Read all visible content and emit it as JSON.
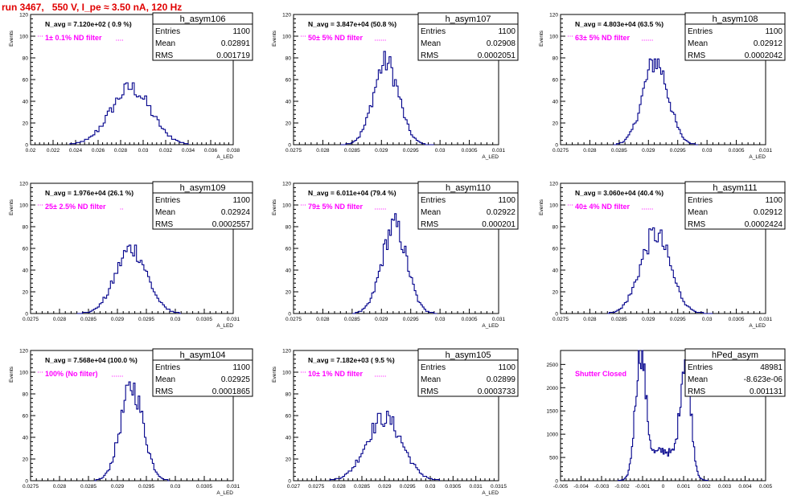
{
  "header": {
    "run_title": "run 3467,   550 V, I_pe ≈ 3.50 nA, 120 Hz"
  },
  "colors": {
    "title": "#e00000",
    "histogram": "#00008b",
    "annotation": "#ff00ff"
  },
  "chart_data": [
    {
      "type": "histogram",
      "name": "h_asym106",
      "navg_text": "N_avg = 7.120e+02 ( 0.9 %)",
      "filter_text": "1± 0.1% ND filter",
      "stats": {
        "entries": "1100",
        "mean": "0.02891",
        "rms": "0.001719"
      },
      "ylabel": "Events",
      "xlabel": "A_LED",
      "xlim": [
        0.02,
        0.038
      ],
      "ylim": [
        0,
        120
      ],
      "xticks": [
        0.02,
        0.022,
        0.024,
        0.026,
        0.028,
        0.03,
        0.032,
        0.034,
        0.036,
        0.038
      ],
      "xtick_labels": [
        "0.02",
        "0.022",
        "0.024",
        "0.026",
        "0.028",
        "0.03",
        "0.032",
        "0.034",
        "0.036",
        "0.038"
      ],
      "yticks": [
        0,
        20,
        40,
        60,
        80,
        100,
        120
      ],
      "ytick_labels": [
        "0",
        "20",
        "40",
        "60",
        "80",
        "100",
        "120"
      ],
      "peak_x": 0.0289,
      "peak_y": 52,
      "width": 0.0017,
      "bins": 57,
      "xrange": [
        0.0235,
        0.034
      ],
      "shape": "gaussian"
    },
    {
      "type": "histogram",
      "name": "h_asym107",
      "navg_text": "N_avg = 3.847e+04 (50.8 %)",
      "filter_text": "50± 5% ND filter",
      "stats": {
        "entries": "1100",
        "mean": "0.02908",
        "rms": "0.0002051"
      },
      "ylabel": "Events",
      "xlabel": "A_LED",
      "xlim": [
        0.0275,
        0.031
      ],
      "ylim": [
        0,
        120
      ],
      "xticks": [
        0.0275,
        0.028,
        0.0285,
        0.029,
        0.0295,
        0.03,
        0.0305,
        0.031
      ],
      "xtick_labels": [
        "0.0275",
        "0.028",
        "0.0285",
        "0.029",
        "0.0295",
        "0.03",
        "0.0305",
        "0.031"
      ],
      "yticks": [
        0,
        20,
        40,
        60,
        80,
        100,
        120
      ],
      "ytick_labels": [
        "0",
        "20",
        "40",
        "60",
        "80",
        "100",
        "120"
      ],
      "peak_x": 0.02908,
      "peak_y": 76,
      "width": 0.000205,
      "bins": 52,
      "xrange": [
        0.0283,
        0.0299
      ],
      "shape": "gaussian"
    },
    {
      "type": "histogram",
      "name": "h_asym108",
      "navg_text": "N_avg = 4.803e+04 (63.5 %)",
      "filter_text": "63± 5% ND filter",
      "stats": {
        "entries": "1100",
        "mean": "0.02912",
        "rms": "0.0002042"
      },
      "ylabel": "Events",
      "xlabel": "A_LED",
      "xlim": [
        0.0275,
        0.031
      ],
      "ylim": [
        0,
        120
      ],
      "xticks": [
        0.0275,
        0.028,
        0.0285,
        0.029,
        0.0295,
        0.03,
        0.0305,
        0.031
      ],
      "xtick_labels": [
        "0.0275",
        "0.028",
        "0.0285",
        "0.029",
        "0.0295",
        "0.03",
        "0.0305",
        "0.031"
      ],
      "yticks": [
        0,
        20,
        40,
        60,
        80,
        100,
        120
      ],
      "ytick_labels": [
        "0",
        "20",
        "40",
        "60",
        "80",
        "100",
        "120"
      ],
      "peak_x": 0.02912,
      "peak_y": 77,
      "width": 0.000204,
      "bins": 52,
      "xrange": [
        0.0284,
        0.02985
      ],
      "shape": "gaussian"
    },
    {
      "type": "histogram",
      "name": "h_asym109",
      "navg_text": "N_avg = 1.976e+04 (26.1 %)",
      "filter_text": "25± 2.5% ND filter",
      "stats": {
        "entries": "1100",
        "mean": "0.02924",
        "rms": "0.0002557"
      },
      "ylabel": "Events",
      "xlabel": "A_LED",
      "xlim": [
        0.0275,
        0.031
      ],
      "ylim": [
        0,
        120
      ],
      "xticks": [
        0.0275,
        0.028,
        0.0285,
        0.029,
        0.0295,
        0.03,
        0.0305,
        0.031
      ],
      "xtick_labels": [
        "0.0275",
        "0.028",
        "0.0285",
        "0.029",
        "0.0295",
        "0.03",
        "0.0305",
        "0.031"
      ],
      "yticks": [
        0,
        20,
        40,
        60,
        80,
        100,
        120
      ],
      "ytick_labels": [
        "0",
        "20",
        "40",
        "60",
        "80",
        "100",
        "120"
      ],
      "peak_x": 0.02924,
      "peak_y": 60,
      "width": 0.000256,
      "bins": 56,
      "xrange": [
        0.0283,
        0.0301
      ],
      "shape": "gaussian"
    },
    {
      "type": "histogram",
      "name": "h_asym110",
      "navg_text": "N_avg = 6.011e+04 (79.4 %)",
      "filter_text": "79± 5% ND filter",
      "stats": {
        "entries": "1100",
        "mean": "0.02922",
        "rms": "0.000201"
      },
      "ylabel": "Events",
      "xlabel": "A_LED",
      "xlim": [
        0.0275,
        0.031
      ],
      "ylim": [
        0,
        120
      ],
      "xticks": [
        0.0275,
        0.028,
        0.0285,
        0.029,
        0.0295,
        0.03,
        0.0305,
        0.031
      ],
      "xtick_labels": [
        "0.0275",
        "0.028",
        "0.0285",
        "0.029",
        "0.0295",
        "0.03",
        "0.0305",
        "0.031"
      ],
      "yticks": [
        0,
        20,
        40,
        60,
        80,
        100,
        120
      ],
      "ytick_labels": [
        "0",
        "20",
        "40",
        "60",
        "80",
        "100",
        "120"
      ],
      "peak_x": 0.02922,
      "peak_y": 81,
      "width": 0.000201,
      "bins": 52,
      "xrange": [
        0.0285,
        0.02995
      ],
      "shape": "gaussian"
    },
    {
      "type": "histogram",
      "name": "h_asym111",
      "navg_text": "N_avg = 3.060e+04 (40.4 %)",
      "filter_text": "40± 4% ND filter",
      "stats": {
        "entries": "1100",
        "mean": "0.02912",
        "rms": "0.0002424"
      },
      "ylabel": "Events",
      "xlabel": "A_LED",
      "xlim": [
        0.0275,
        0.031
      ],
      "ylim": [
        0,
        120
      ],
      "xticks": [
        0.0275,
        0.028,
        0.0285,
        0.029,
        0.0295,
        0.03,
        0.0305,
        0.031
      ],
      "xtick_labels": [
        "0.0275",
        "0.028",
        "0.0285",
        "0.029",
        "0.0295",
        "0.03",
        "0.0305",
        "0.031"
      ],
      "yticks": [
        0,
        20,
        40,
        60,
        80,
        100,
        120
      ],
      "ytick_labels": [
        "0",
        "20",
        "40",
        "60",
        "80",
        "100",
        "120"
      ],
      "peak_x": 0.02912,
      "peak_y": 73,
      "width": 0.000242,
      "bins": 56,
      "xrange": [
        0.0283,
        0.0301
      ],
      "shape": "gaussian"
    },
    {
      "type": "histogram",
      "name": "h_asym104",
      "navg_text": "N_avg = 7.568e+04 (100.0 %)",
      "filter_text": "100% (No filter)",
      "stats": {
        "entries": "1100",
        "mean": "0.02925",
        "rms": "0.0001865"
      },
      "ylabel": "Events",
      "xlabel": "A_LED",
      "xlim": [
        0.0275,
        0.031
      ],
      "ylim": [
        0,
        120
      ],
      "xticks": [
        0.0275,
        0.028,
        0.0285,
        0.029,
        0.0295,
        0.03,
        0.0305,
        0.031
      ],
      "xtick_labels": [
        "0.0275",
        "0.028",
        "0.0285",
        "0.029",
        "0.0295",
        "0.03",
        "0.0305",
        "0.031"
      ],
      "yticks": [
        0,
        20,
        40,
        60,
        80,
        100,
        120
      ],
      "ytick_labels": [
        "0",
        "20",
        "40",
        "60",
        "80",
        "100",
        "120"
      ],
      "peak_x": 0.02925,
      "peak_y": 86,
      "width": 0.000187,
      "bins": 48,
      "xrange": [
        0.0286,
        0.0299
      ],
      "shape": "gaussian"
    },
    {
      "type": "histogram",
      "name": "h_asym105",
      "navg_text": "N_avg = 7.182e+03 ( 9.5 %)",
      "filter_text": "10± 1% ND filter",
      "stats": {
        "entries": "1100",
        "mean": "0.02899",
        "rms": "0.0003733"
      },
      "ylabel": "Events",
      "xlabel": "A_LED",
      "xlim": [
        0.027,
        0.0315
      ],
      "ylim": [
        0,
        120
      ],
      "xticks": [
        0.027,
        0.0275,
        0.028,
        0.0285,
        0.029,
        0.0295,
        0.03,
        0.0305,
        0.031,
        0.0315
      ],
      "xtick_labels": [
        "0.027",
        "0.0275",
        "0.028",
        "0.0285",
        "0.029",
        "0.0295",
        "0.03",
        "0.0305",
        "0.031",
        "0.0315"
      ],
      "yticks": [
        0,
        20,
        40,
        60,
        80,
        100,
        120
      ],
      "ytick_labels": [
        "0",
        "20",
        "40",
        "60",
        "80",
        "100",
        "120"
      ],
      "peak_x": 0.02899,
      "peak_y": 58,
      "width": 0.000373,
      "bins": 60,
      "xrange": [
        0.0278,
        0.0302
      ],
      "shape": "gaussian"
    },
    {
      "type": "histogram",
      "name": "hPed_asym",
      "navg_text": "",
      "filter_text": "Shutter Closed",
      "stats": {
        "entries": "48981",
        "mean": "-8.623e-06",
        "rms": "0.001131"
      },
      "ylabel": "",
      "xlabel": "",
      "xlim": [
        -0.005,
        0.005
      ],
      "ylim": [
        0,
        2800
      ],
      "xticks": [
        -0.005,
        -0.004,
        -0.003,
        -0.002,
        -0.001,
        0,
        0.001,
        0.002,
        0.003,
        0.004,
        0.005
      ],
      "xtick_labels": [
        "-0.005",
        "-0.004",
        "-0.003",
        "-0.002",
        "-0.001",
        "0",
        "0.001",
        "0.002",
        "0.003",
        "0.004",
        "0.005"
      ],
      "yticks": [
        0,
        500,
        1000,
        1500,
        2000,
        2500
      ],
      "ytick_labels": [
        "0",
        "500",
        "1000",
        "1500",
        "2000",
        "2500"
      ],
      "peak_x": -0.0011,
      "peak_y": 2640,
      "width": 0.00025,
      "bins": 80,
      "xrange": [
        -0.0022,
        0.0022
      ],
      "shape": "double",
      "peak2_x": 0.0011,
      "peak2_y": 2520,
      "valley_y": 650
    }
  ]
}
